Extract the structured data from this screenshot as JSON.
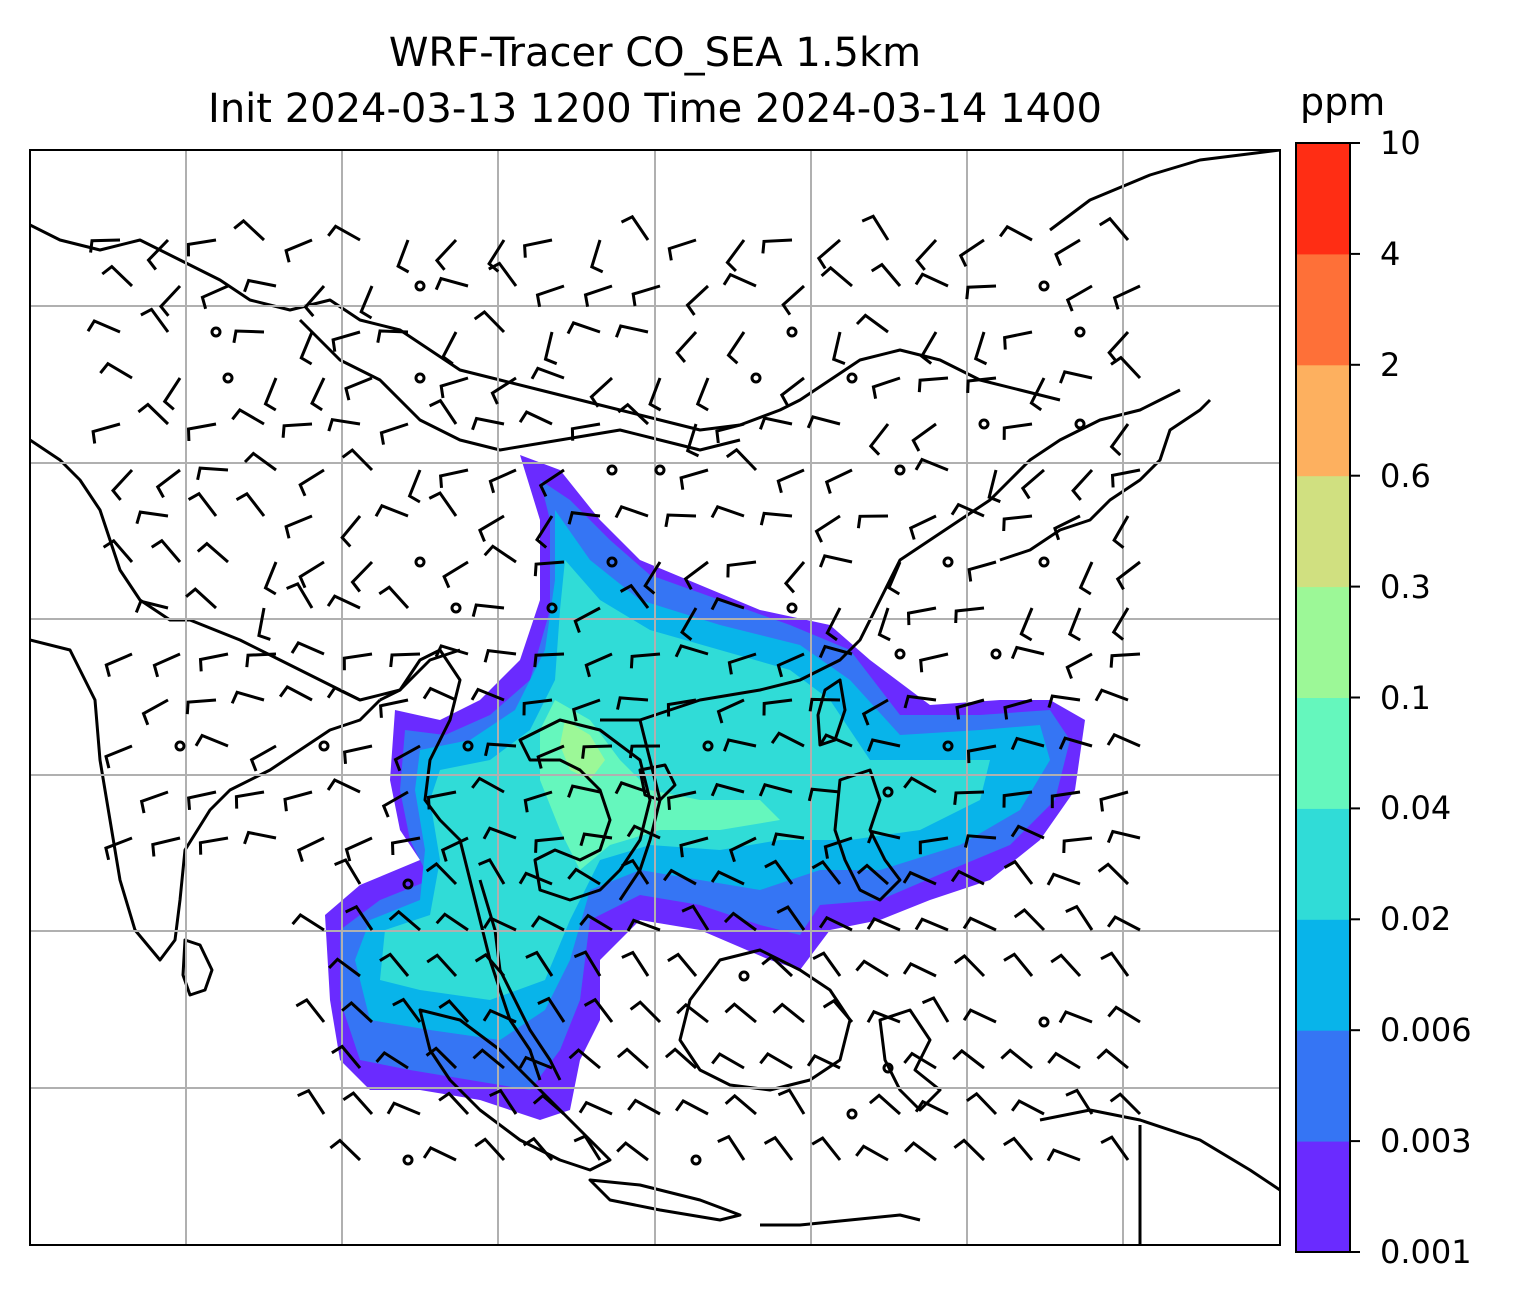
{
  "title": {
    "line1": "WRF-Tracer CO_SEA 1.5km",
    "line2": "Init 2024-03-13 1200 Time 2024-03-14 1400"
  },
  "colorbar": {
    "unit": "ppm",
    "levels": [
      "0.001",
      "0.003",
      "0.006",
      "0.02",
      "0.04",
      "0.1",
      "0.3",
      "0.6",
      "2",
      "4",
      "10"
    ],
    "colors": [
      "#6a2bff",
      "#3575f4",
      "#08b4ea",
      "#30dcd7",
      "#65f7bd",
      "#9cf897",
      "#d0e080",
      "#fdb05f",
      "#fe7038",
      "#ff2d14"
    ]
  },
  "map": {
    "domain": "Southeast Asia",
    "gridlines": true,
    "coastline_color": "#000000",
    "plume_field": "CO tracer concentration, 1.5 km",
    "wind_field": "wind barbs"
  }
}
